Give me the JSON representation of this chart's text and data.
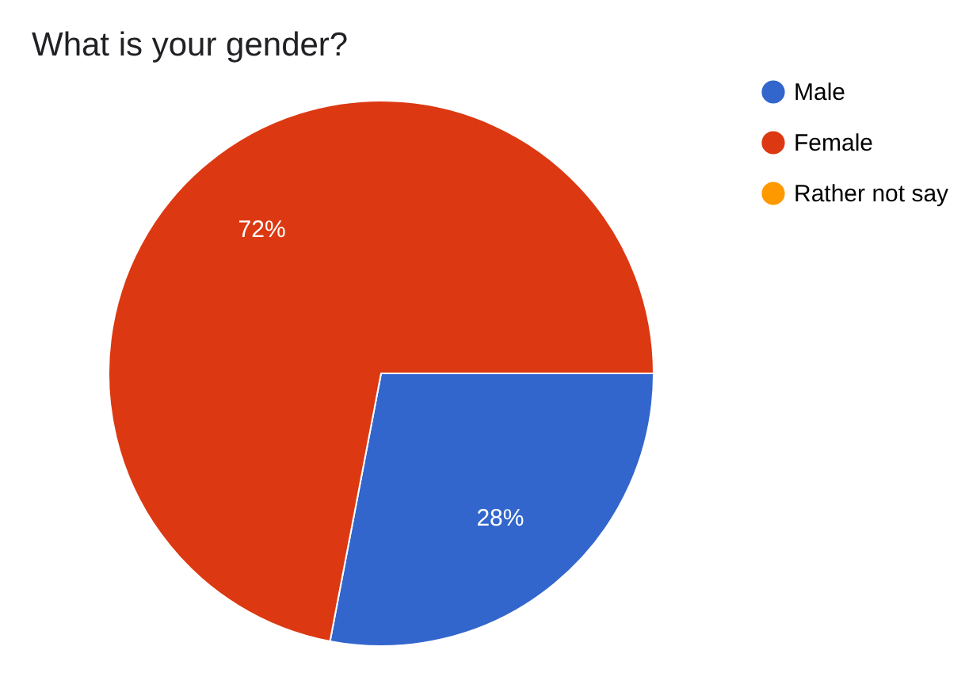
{
  "chart_data": {
    "type": "pie",
    "title": "What is your gender?",
    "categories": [
      "Male",
      "Female",
      "Rather not say"
    ],
    "values": [
      28,
      72,
      0
    ],
    "colors": [
      "#3366cc",
      "#dc3912",
      "#ff9900"
    ],
    "value_labels": [
      "28%",
      "72%",
      null
    ],
    "legend": "right"
  }
}
